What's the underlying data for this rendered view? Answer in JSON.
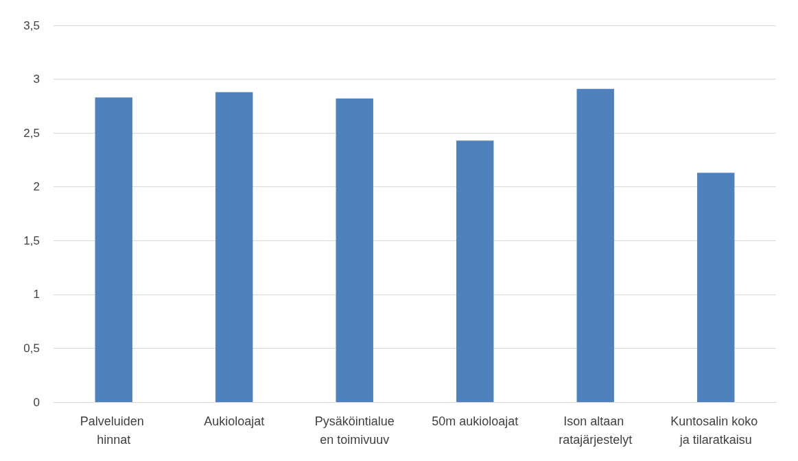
{
  "chart_data": {
    "type": "bar",
    "categories": [
      "Palveluiden hinnat",
      "Aukioloajat",
      "Pysäköintialueen toimivuuv",
      "50m aukioloajat",
      "Ison altaan ratajärjestelyt",
      "Kuntosalin koko ja tilaratkaisu"
    ],
    "values": [
      2.83,
      2.88,
      2.82,
      2.43,
      2.91,
      2.13
    ],
    "color": "#4f81bd",
    "ylim": [
      0,
      3.5
    ],
    "yticks": [
      0,
      {
        "value": 0.5,
        "label": "0,5"
      },
      1,
      {
        "value": 1.5,
        "label": "1,5"
      },
      2,
      {
        "value": 2.5,
        "label": "2,5"
      },
      3,
      {
        "value": 3.5,
        "label": "3,5"
      }
    ],
    "grid": "y"
  }
}
